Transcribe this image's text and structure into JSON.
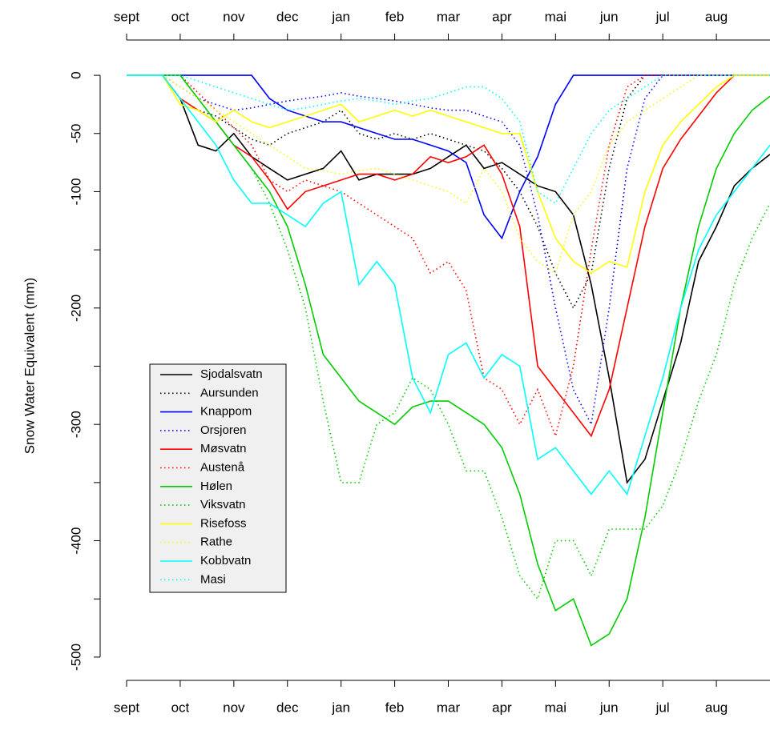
{
  "chart_data": {
    "type": "line",
    "ylabel": "Snow Water Equivalent (mm)",
    "categories": [
      "sept",
      null,
      null,
      "oct",
      null,
      null,
      "nov",
      null,
      null,
      "dec",
      null,
      null,
      "jan",
      null,
      null,
      "feb",
      null,
      null,
      "mar",
      null,
      null,
      "apr",
      null,
      null,
      "mai",
      null,
      null,
      "jun",
      null,
      null,
      "jul",
      null,
      null,
      "aug",
      null,
      null,
      null
    ],
    "ylim": [
      -520,
      20
    ],
    "yticks": [
      0,
      -50,
      -100,
      -150,
      -200,
      -250,
      -300,
      -350,
      -400,
      -450,
      -500
    ],
    "ytick_labels_shown": [
      0,
      -50,
      -100,
      -200,
      -300,
      -400,
      -500
    ],
    "legend": "left",
    "series": [
      {
        "name": "Sjodalsvatn",
        "color": "#000000",
        "linestyle": "solid",
        "values": [
          0,
          0,
          0,
          -20,
          -60,
          -65,
          -50,
          -70,
          -80,
          -90,
          -85,
          -80,
          -65,
          -90,
          -85,
          -85,
          -85,
          -80,
          -70,
          -60,
          -80,
          -75,
          -85,
          -95,
          -100,
          -120,
          -180,
          -260,
          -350,
          -330,
          -280,
          -230,
          -160,
          -130,
          -95,
          -80,
          -68
        ]
      },
      {
        "name": "Aursunden",
        "color": "#000000",
        "linestyle": "dotted",
        "values": [
          0,
          0,
          0,
          -20,
          -30,
          -35,
          -45,
          -55,
          -60,
          -50,
          -45,
          -40,
          -30,
          -50,
          -55,
          -50,
          -55,
          -50,
          -55,
          -60,
          -65,
          -80,
          -100,
          -130,
          -170,
          -200,
          -170,
          -80,
          -20,
          0,
          0,
          0,
          0,
          0,
          0,
          0,
          0
        ]
      },
      {
        "name": "Knappom",
        "color": "#0000ff",
        "linestyle": "solid",
        "values": [
          0,
          0,
          0,
          0,
          0,
          0,
          0,
          0,
          -20,
          -30,
          -35,
          -40,
          -40,
          -45,
          -50,
          -55,
          -55,
          -60,
          -65,
          -75,
          -120,
          -140,
          -100,
          -70,
          -25,
          0,
          0,
          0,
          0,
          0,
          0,
          0,
          0,
          0,
          0,
          0,
          0
        ]
      },
      {
        "name": "Orsjoren",
        "color": "#0000ff",
        "linestyle": "dotted",
        "values": [
          0,
          0,
          0,
          -10,
          -20,
          -25,
          -30,
          -28,
          -25,
          -22,
          -20,
          -18,
          -15,
          -18,
          -20,
          -22,
          -25,
          -28,
          -30,
          -30,
          -35,
          -40,
          -60,
          -120,
          -200,
          -270,
          -300,
          -200,
          -80,
          -20,
          0,
          0,
          0,
          0,
          0,
          0,
          0
        ]
      },
      {
        "name": "Møsvatn",
        "color": "#ff0000",
        "linestyle": "solid",
        "values": [
          0,
          0,
          0,
          -20,
          -30,
          -40,
          -60,
          -70,
          -90,
          -115,
          -100,
          -95,
          -90,
          -85,
          -85,
          -90,
          -85,
          -70,
          -75,
          -70,
          -60,
          -85,
          -130,
          -250,
          -270,
          -290,
          -310,
          -270,
          -200,
          -130,
          -80,
          -55,
          -35,
          -15,
          0,
          0,
          0
        ]
      },
      {
        "name": "Austenå",
        "color": "#ff0000",
        "linestyle": "dotted",
        "values": [
          0,
          0,
          0,
          0,
          -15,
          -30,
          -45,
          -60,
          -90,
          -100,
          -90,
          -95,
          -100,
          -110,
          -120,
          -130,
          -140,
          -170,
          -160,
          -185,
          -260,
          -270,
          -300,
          -270,
          -310,
          -250,
          -150,
          -60,
          -10,
          0,
          0,
          0,
          0,
          0,
          0,
          0,
          0
        ]
      },
      {
        "name": "Hølen",
        "color": "#00cd00",
        "linestyle": "solid",
        "values": [
          0,
          0,
          0,
          0,
          -20,
          -40,
          -60,
          -80,
          -100,
          -130,
          -180,
          -240,
          -260,
          -280,
          -290,
          -300,
          -285,
          -280,
          -280,
          -290,
          -300,
          -320,
          -360,
          -420,
          -460,
          -450,
          -490,
          -480,
          -450,
          -380,
          -290,
          -200,
          -130,
          -80,
          -50,
          -30,
          -18
        ]
      },
      {
        "name": "Viksvatn",
        "color": "#00cd00",
        "linestyle": "dotted",
        "values": [
          0,
          0,
          0,
          0,
          -20,
          -40,
          -60,
          -80,
          -110,
          -150,
          -200,
          -280,
          -350,
          -350,
          -300,
          -290,
          -260,
          -270,
          -300,
          -340,
          -340,
          -380,
          -430,
          -450,
          -400,
          -400,
          -430,
          -390,
          -390,
          -390,
          -370,
          -330,
          -280,
          -240,
          -180,
          -140,
          -110
        ]
      },
      {
        "name": "Risefoss",
        "color": "#ffff00",
        "linestyle": "solid",
        "values": [
          0,
          0,
          0,
          -25,
          -30,
          -40,
          -30,
          -40,
          -45,
          -40,
          -35,
          -30,
          -25,
          -40,
          -35,
          -30,
          -35,
          -30,
          -35,
          -40,
          -45,
          -50,
          -50,
          -100,
          -140,
          -160,
          -170,
          -160,
          -165,
          -100,
          -60,
          -40,
          -25,
          -10,
          0,
          0,
          0
        ]
      },
      {
        "name": "Rathe",
        "color": "#ffff00",
        "linestyle": "dotted",
        "values": [
          0,
          0,
          0,
          -10,
          -20,
          -30,
          -40,
          -50,
          -60,
          -70,
          -80,
          -82,
          -85,
          -82,
          -80,
          -85,
          -90,
          -95,
          -100,
          -110,
          -80,
          -100,
          -140,
          -160,
          -170,
          -120,
          -100,
          -60,
          -40,
          -30,
          -20,
          -10,
          0,
          0,
          0,
          0,
          0
        ]
      },
      {
        "name": "Kobbvatn",
        "color": "#00ffff",
        "linestyle": "solid",
        "values": [
          0,
          0,
          0,
          -20,
          -40,
          -60,
          -90,
          -110,
          -110,
          -120,
          -130,
          -110,
          -100,
          -180,
          -160,
          -180,
          -260,
          -290,
          -240,
          -230,
          -260,
          -240,
          -250,
          -330,
          -320,
          -340,
          -360,
          -340,
          -360,
          -310,
          -260,
          -200,
          -150,
          -120,
          -100,
          -80,
          -60
        ]
      },
      {
        "name": "Masi",
        "color": "#00ffff",
        "linestyle": "dotted",
        "values": [
          0,
          0,
          0,
          0,
          -5,
          -10,
          -15,
          -20,
          -25,
          -30,
          -28,
          -25,
          -22,
          -20,
          -22,
          -25,
          -22,
          -20,
          -15,
          -10,
          -10,
          -20,
          -40,
          -100,
          -110,
          -80,
          -50,
          -30,
          -20,
          -10,
          0,
          0,
          0,
          0,
          0,
          0,
          0
        ]
      }
    ]
  }
}
